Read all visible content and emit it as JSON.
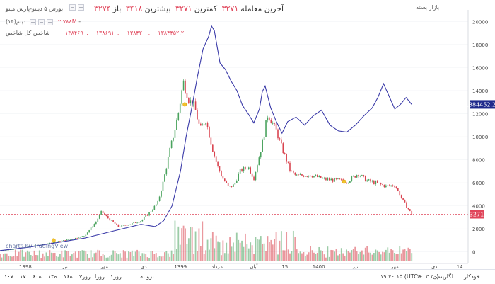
{
  "header": {
    "symbol": "بورس ۵ دیبنو-پارس مینو",
    "open_label": "باز",
    "open_value": "۳۲۷۴",
    "high_label": "بیشترین",
    "high_value": "۳۴۱۸",
    "low_label": "کمترین",
    "low_value": "۳۲۷۱",
    "close_label": "آخرین معامله",
    "close_value": "۳۲۷۱",
    "volume": "۲.۷۸۸M",
    "volume_sep": "-",
    "indicator1_label": "دیتم(۱۴)",
    "indicator2_label": "شاخص کل شاخص",
    "indicator2_values": "۱۳۸۴۶۹۰.۰۰   ۱۳۸۶۹۱۰.۰۰   ۱۳۸۴۲۰۰.۰۰   ۱۳۸۴۴۵۲.۲۰",
    "market_status": "بازار بسته"
  },
  "price_label": "3271",
  "index_label": "1384452.20",
  "tv_logo": "charts by TradingView",
  "bottombar": {
    "ranges": [
      "۱۰۷",
      "۱۷",
      "۶۰ه",
      "۱۳ه",
      "۱۶ه",
      "۷روز",
      "روزا",
      "۱روز"
    ],
    "goto_label": "برو به ...",
    "time": "۱۹:۴۰:۱۵ (UTC+۰۳:۳۰)",
    "percent": "٪",
    "log": "لگاریتمی",
    "auto": "خودکار"
  },
  "chart_data": {
    "type": "candlestick",
    "title": "",
    "y_axis": {
      "min": -1000,
      "max": 21000,
      "ticks": [
        0,
        2000,
        4000,
        6000,
        8000,
        10000,
        12000,
        14000,
        16000,
        18000,
        20000
      ]
    },
    "x_ticks": [
      {
        "label": "1398",
        "t": 0.09
      },
      {
        "label": "تیر",
        "t": 0.23
      },
      {
        "label": "مهر",
        "t": 0.37
      },
      {
        "label": "دی",
        "t": 0.51
      },
      {
        "label": "1399",
        "t": 0.64
      },
      {
        "label": "مرداد",
        "t": 0.77
      },
      {
        "label": "آبان",
        "t": 0.9
      },
      {
        "label": "15",
        "t": 1.01
      },
      {
        "label": "1400",
        "t": 1.13
      },
      {
        "label": "تیر",
        "t": 1.26
      },
      {
        "label": "مهر",
        "t": 1.4
      },
      {
        "label": "دی",
        "t": 1.54
      },
      {
        "label": "14",
        "t": 1.63
      }
    ],
    "price_series": [
      [
        0.0,
        120
      ],
      [
        0.05,
        250
      ],
      [
        0.1,
        450
      ],
      [
        0.15,
        650
      ],
      [
        0.2,
        900
      ],
      [
        0.25,
        1100
      ],
      [
        0.3,
        1400
      ],
      [
        0.34,
        2600
      ],
      [
        0.36,
        3500
      ],
      [
        0.38,
        3000
      ],
      [
        0.42,
        2200
      ],
      [
        0.46,
        2400
      ],
      [
        0.5,
        2700
      ],
      [
        0.53,
        3400
      ],
      [
        0.56,
        4300
      ],
      [
        0.58,
        6200
      ],
      [
        0.6,
        8600
      ],
      [
        0.62,
        10600
      ],
      [
        0.635,
        12400
      ],
      [
        0.65,
        14800
      ],
      [
        0.67,
        13200
      ],
      [
        0.69,
        12600
      ],
      [
        0.71,
        10600
      ],
      [
        0.73,
        11500
      ],
      [
        0.75,
        9300
      ],
      [
        0.77,
        7500
      ],
      [
        0.79,
        6400
      ],
      [
        0.81,
        5600
      ],
      [
        0.83,
        5800
      ],
      [
        0.85,
        7000
      ],
      [
        0.88,
        7400
      ],
      [
        0.9,
        6400
      ],
      [
        0.93,
        9400
      ],
      [
        0.95,
        12000
      ],
      [
        0.98,
        10500
      ],
      [
        1.0,
        9000
      ],
      [
        1.03,
        7000
      ],
      [
        1.05,
        6600
      ],
      [
        1.1,
        6700
      ],
      [
        1.15,
        6300
      ],
      [
        1.2,
        6200
      ],
      [
        1.23,
        6100
      ],
      [
        1.27,
        6800
      ],
      [
        1.3,
        6200
      ],
      [
        1.33,
        6000
      ],
      [
        1.37,
        5700
      ],
      [
        1.4,
        5800
      ],
      [
        1.43,
        4400
      ],
      [
        1.46,
        3271
      ]
    ],
    "index_series": [
      [
        0.0,
        120
      ],
      [
        0.1,
        400
      ],
      [
        0.2,
        800
      ],
      [
        0.3,
        1200
      ],
      [
        0.4,
        1800
      ],
      [
        0.5,
        2400
      ],
      [
        0.55,
        2200
      ],
      [
        0.58,
        2700
      ],
      [
        0.61,
        4000
      ],
      [
        0.64,
        7000
      ],
      [
        0.66,
        10000
      ],
      [
        0.68,
        12500
      ],
      [
        0.7,
        15200
      ],
      [
        0.72,
        17600
      ],
      [
        0.74,
        18700
      ],
      [
        0.75,
        19600
      ],
      [
        0.76,
        19200
      ],
      [
        0.78,
        16400
      ],
      [
        0.8,
        15800
      ],
      [
        0.82,
        14800
      ],
      [
        0.84,
        14000
      ],
      [
        0.86,
        12700
      ],
      [
        0.88,
        12000
      ],
      [
        0.9,
        11200
      ],
      [
        0.92,
        12400
      ],
      [
        0.93,
        13900
      ],
      [
        0.94,
        14400
      ],
      [
        0.96,
        12500
      ],
      [
        0.98,
        11300
      ],
      [
        1.0,
        10300
      ],
      [
        1.02,
        11300
      ],
      [
        1.05,
        11700
      ],
      [
        1.08,
        11000
      ],
      [
        1.11,
        11800
      ],
      [
        1.14,
        12300
      ],
      [
        1.17,
        11000
      ],
      [
        1.2,
        10500
      ],
      [
        1.23,
        10400
      ],
      [
        1.26,
        11000
      ],
      [
        1.29,
        11800
      ],
      [
        1.32,
        12500
      ],
      [
        1.34,
        13400
      ],
      [
        1.36,
        14600
      ],
      [
        1.38,
        13500
      ],
      [
        1.4,
        12400
      ],
      [
        1.42,
        12800
      ],
      [
        1.44,
        13400
      ],
      [
        1.46,
        12800
      ]
    ],
    "volume_bars_max": 4000,
    "last_price": 3271,
    "last_index": 1384452.2
  }
}
